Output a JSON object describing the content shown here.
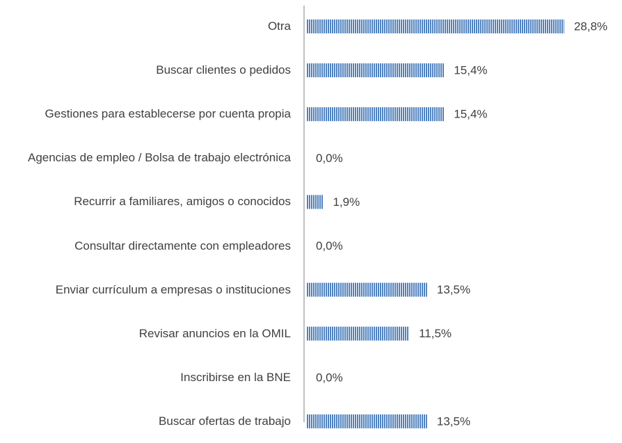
{
  "chart_data": {
    "type": "bar",
    "orientation": "horizontal",
    "color": "#4f81bd",
    "categories": [
      "Otra",
      "Buscar clientes o pedidos",
      "Gestiones para establecerse por cuenta propia",
      "Agencias de empleo / Bolsa de trabajo electrónica",
      "Recurrir a familiares, amigos o conocidos",
      "Consultar directamente con empleadores",
      "Enviar currículum a empresas o instituciones",
      "Revisar anuncios en la OMIL",
      "Inscribirse en la BNE",
      "Buscar ofertas de trabajo"
    ],
    "values": [
      28.8,
      15.4,
      15.4,
      0.0,
      1.9,
      0.0,
      13.5,
      11.5,
      0.0,
      13.5
    ],
    "value_labels": [
      "28,8%",
      "15,4%",
      "15,4%",
      "0,0%",
      "1,9%",
      "0,0%",
      "13,5%",
      "11,5%",
      "0,0%",
      "13,5%"
    ]
  }
}
